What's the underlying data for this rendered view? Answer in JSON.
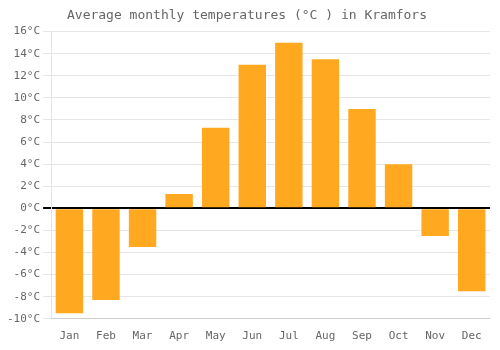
{
  "chart_data": {
    "type": "bar",
    "title": "Average monthly temperatures (°C ) in Kramfors",
    "categories": [
      "Jan",
      "Feb",
      "Mar",
      "Apr",
      "May",
      "Jun",
      "Jul",
      "Aug",
      "Sep",
      "Oct",
      "Nov",
      "Dec"
    ],
    "values": [
      -9.5,
      -8.3,
      -3.5,
      1.3,
      7.3,
      13.0,
      15.0,
      13.5,
      9.0,
      4.0,
      -2.5,
      -7.5
    ],
    "color": "#FFA820",
    "ylim": [
      -10,
      16
    ],
    "yticks": [
      {
        "value": -10,
        "label": "-10°C"
      },
      {
        "value": -8,
        "label": "-8°C"
      },
      {
        "value": -6,
        "label": "-6°C"
      },
      {
        "value": -4,
        "label": "-4°C"
      },
      {
        "value": -2,
        "label": "-2°C"
      },
      {
        "value": 0,
        "label": "0°C"
      },
      {
        "value": 2,
        "label": "2°C"
      },
      {
        "value": 4,
        "label": "4°C"
      },
      {
        "value": 6,
        "label": "6°C"
      },
      {
        "value": 8,
        "label": "8°C"
      },
      {
        "value": 10,
        "label": "10°C"
      },
      {
        "value": 12,
        "label": "12°C"
      },
      {
        "value": 14,
        "label": "14°C"
      },
      {
        "value": 16,
        "label": "16°C"
      }
    ],
    "grid": true
  }
}
